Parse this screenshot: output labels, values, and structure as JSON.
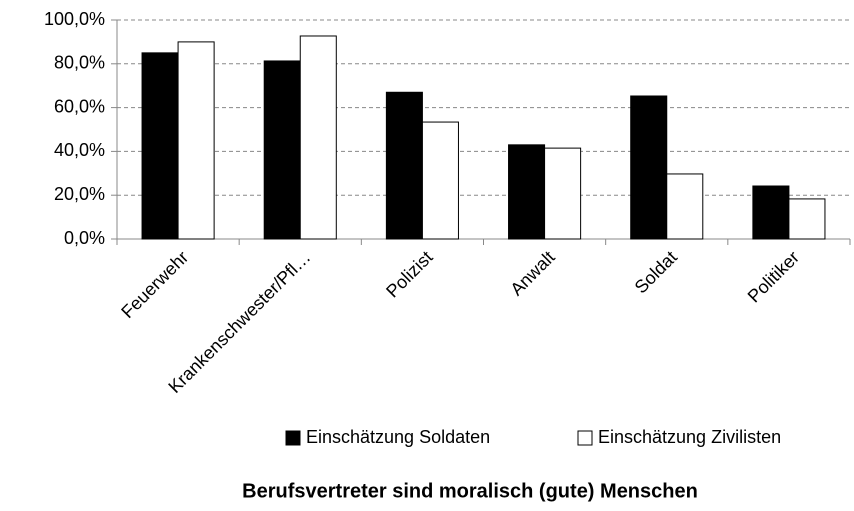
{
  "chart_data": {
    "type": "bar",
    "title": "Berufsvertreter sind moralisch (gute) Menschen",
    "categories": [
      "Feuerwehr",
      "Krankenschwester/Pfl…",
      "Polizist",
      "Anwalt",
      "Soldat",
      "Politiker"
    ],
    "series": [
      {
        "name": "Einschätzung Soldaten",
        "color": "#000000",
        "values": [
          85,
          81.3,
          67,
          43,
          65.3,
          24.2
        ]
      },
      {
        "name": "Einschätzung Zivilisten",
        "color": "#ffffff",
        "values": [
          90,
          92.7,
          53.4,
          41.5,
          29.7,
          18.3
        ]
      }
    ],
    "ylim": [
      0,
      100
    ],
    "yticks": [
      {
        "value": 0,
        "label": "0,0%"
      },
      {
        "value": 20,
        "label": "20,0%"
      },
      {
        "value": 40,
        "label": "40,0%"
      },
      {
        "value": 60,
        "label": "60,0%"
      },
      {
        "value": 80,
        "label": "80,0%"
      },
      {
        "value": 100,
        "label": "100,0%"
      }
    ],
    "grid": true,
    "legend": "bottom"
  }
}
